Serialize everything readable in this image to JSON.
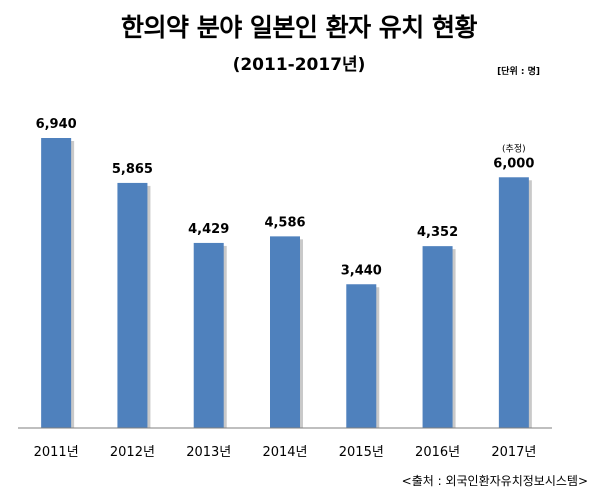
{
  "header": {
    "title": "한의약 분야 일본인 환자 유치 현황",
    "subtitle": "(2011-2017년)",
    "unit": "[단위 : 명]"
  },
  "footer": {
    "source": "<출처 : 외국인환자유치정보시스템>"
  },
  "colors": {
    "bar": "#4f81bd",
    "bar_shadow": "#c9c9c9",
    "axis": "#7f7f7f"
  },
  "chart_data": {
    "type": "bar",
    "title": "한의약 분야 일본인 환자 유치 현황",
    "subtitle": "(2011-2017년)",
    "unit": "[단위 : 명]",
    "categories": [
      "2011년",
      "2012년",
      "2013년",
      "2014년",
      "2015년",
      "2016년",
      "2017년"
    ],
    "values": [
      6940,
      5865,
      4429,
      4586,
      3440,
      4352,
      6000
    ],
    "value_labels": [
      "6,940",
      "5,865",
      "4,429",
      "4,586",
      "3,440",
      "4,352",
      "6,000"
    ],
    "annotations": [
      {
        "category": "2017년",
        "text": "(추정)"
      }
    ],
    "ylim": [
      0,
      8000
    ],
    "grid": false,
    "legend": "none"
  }
}
